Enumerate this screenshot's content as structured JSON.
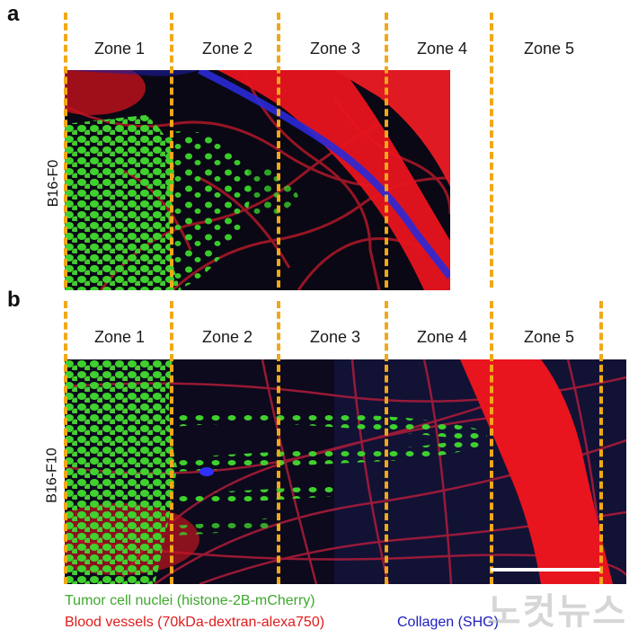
{
  "panel_a": {
    "letter": "a",
    "row_label": "B16-F0",
    "zones": [
      "Zone 1",
      "Zone 2",
      "Zone 3",
      "Zone 4",
      "Zone 5"
    ]
  },
  "panel_b": {
    "letter": "b",
    "row_label": "B16-F10",
    "zones": [
      "Zone 1",
      "Zone 2",
      "Zone 3",
      "Zone 4",
      "Zone 5"
    ]
  },
  "legend": {
    "green": "Tumor cell nuclei (histone-2B-mCherry)",
    "red": "Blood vessels (70kDa-dextran-alexa750)",
    "blue": "Collagen (SHG)"
  },
  "colors": {
    "tumor_nuclei": "#3fd12e",
    "blood_vessels": "#e8141e",
    "collagen": "#2a2ad8",
    "zone_divider": "#f0a818",
    "scale_bar": "#ffffff"
  },
  "watermark": "노컷뉴스"
}
